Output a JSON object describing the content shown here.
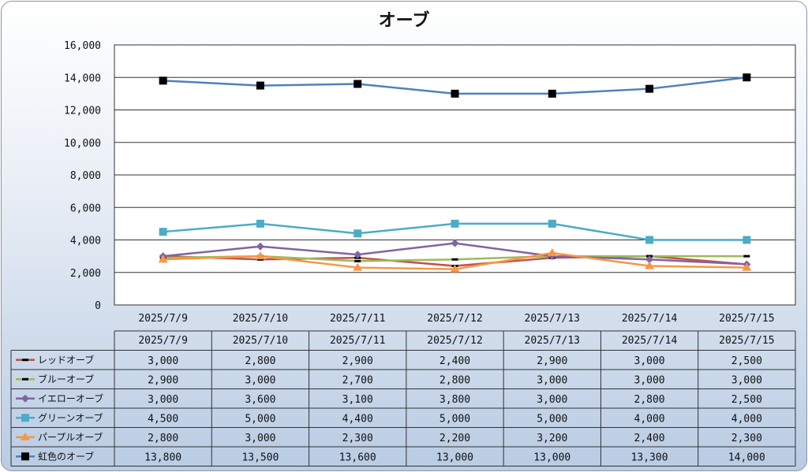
{
  "chart_data": {
    "type": "line",
    "title": "オーブ",
    "categories": [
      "2025/7/9",
      "2025/7/10",
      "2025/7/11",
      "2025/7/12",
      "2025/7/13",
      "2025/7/14",
      "2025/7/15"
    ],
    "ylim": [
      0,
      16000
    ],
    "yticks": [
      "0",
      "2,000",
      "4,000",
      "6,000",
      "8,000",
      "10,000",
      "12,000",
      "14,000",
      "16,000"
    ],
    "ytick_values": [
      0,
      2000,
      4000,
      6000,
      8000,
      10000,
      12000,
      14000,
      16000
    ],
    "grid": true,
    "legend": "data-table",
    "series": [
      {
        "name": "レッドオーブ",
        "color": "#c0504d",
        "marker": "dash",
        "values": [
          3000,
          2800,
          2900,
          2400,
          2900,
          3000,
          2500
        ],
        "labels": [
          "3,000",
          "2,800",
          "2,900",
          "2,400",
          "2,900",
          "3,000",
          "2,500"
        ]
      },
      {
        "name": "ブルーオーブ",
        "color": "#9bbb59",
        "marker": "dash",
        "values": [
          2900,
          3000,
          2700,
          2800,
          3000,
          3000,
          3000
        ],
        "labels": [
          "2,900",
          "3,000",
          "2,700",
          "2,800",
          "3,000",
          "3,000",
          "3,000"
        ]
      },
      {
        "name": "イエローオーブ",
        "color": "#8064a2",
        "marker": "diamond",
        "values": [
          3000,
          3600,
          3100,
          3800,
          3000,
          2800,
          2500
        ],
        "labels": [
          "3,000",
          "3,600",
          "3,100",
          "3,800",
          "3,000",
          "2,800",
          "2,500"
        ]
      },
      {
        "name": "グリーンオーブ",
        "color": "#4bacc6",
        "marker": "square",
        "values": [
          4500,
          5000,
          4400,
          5000,
          5000,
          4000,
          4000
        ],
        "labels": [
          "4,500",
          "5,000",
          "4,400",
          "5,000",
          "5,000",
          "4,000",
          "4,000"
        ]
      },
      {
        "name": "パープルオーブ",
        "color": "#f79646",
        "marker": "triangle",
        "values": [
          2800,
          3000,
          2300,
          2200,
          3200,
          2400,
          2300
        ],
        "labels": [
          "2,800",
          "3,000",
          "2,300",
          "2,200",
          "3,200",
          "2,400",
          "2,300"
        ]
      },
      {
        "name": "虹色のオーブ",
        "color": "#4f81bd",
        "marker": "square-black",
        "values": [
          13800,
          13500,
          13600,
          13000,
          13000,
          13300,
          14000
        ],
        "labels": [
          "13,800",
          "13,500",
          "13,600",
          "13,000",
          "13,000",
          "13,300",
          "14,000"
        ]
      }
    ]
  }
}
